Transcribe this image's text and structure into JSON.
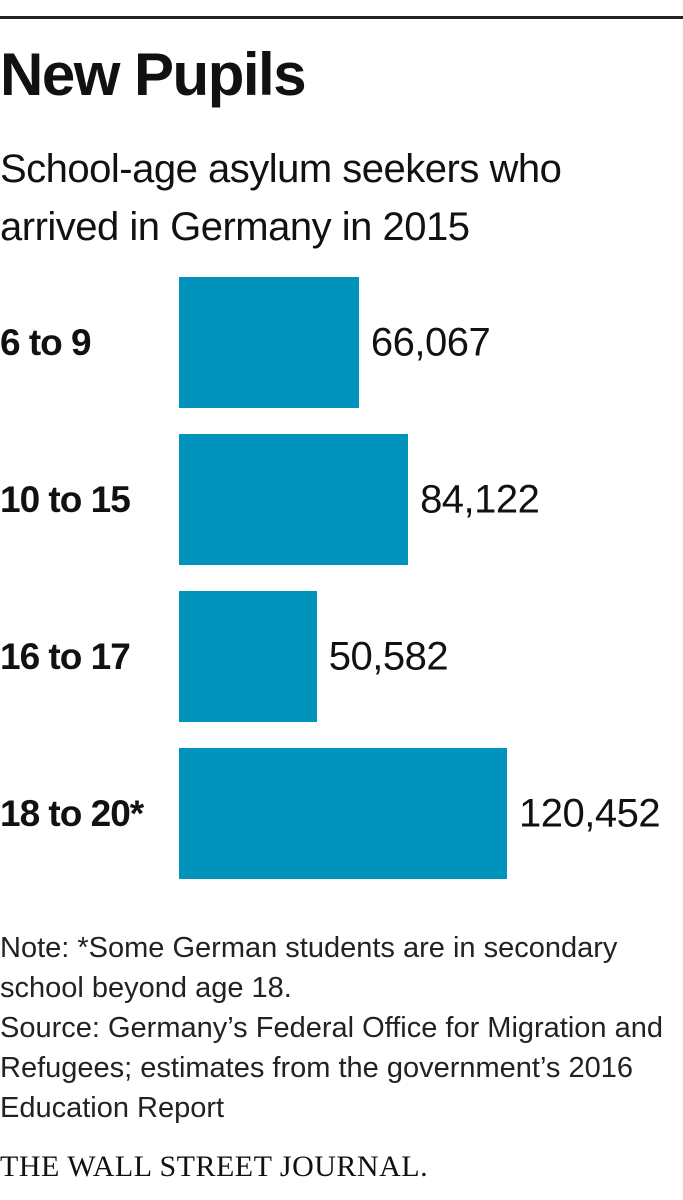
{
  "chart_data": {
    "type": "bar",
    "orientation": "horizontal",
    "title": "New Pupils",
    "subtitle": "School-age asylum seekers who arrived in Germany in 2015",
    "categories": [
      "6 to 9",
      "10 to 15",
      "16 to 17",
      "18 to 20*"
    ],
    "values": [
      66067,
      84122,
      50582,
      120452
    ],
    "value_labels": [
      "66,067",
      "84,122",
      "50,582",
      "120,452"
    ],
    "color": "#0093bb",
    "note": "Note: *Some German students are in secondary school beyond age 18.",
    "source": "Source: Germany’s Federal Office for Migration and Refugees; estimates from the government’s 2016 Education Report",
    "credit": "THE WALL STREET JOURNAL."
  }
}
